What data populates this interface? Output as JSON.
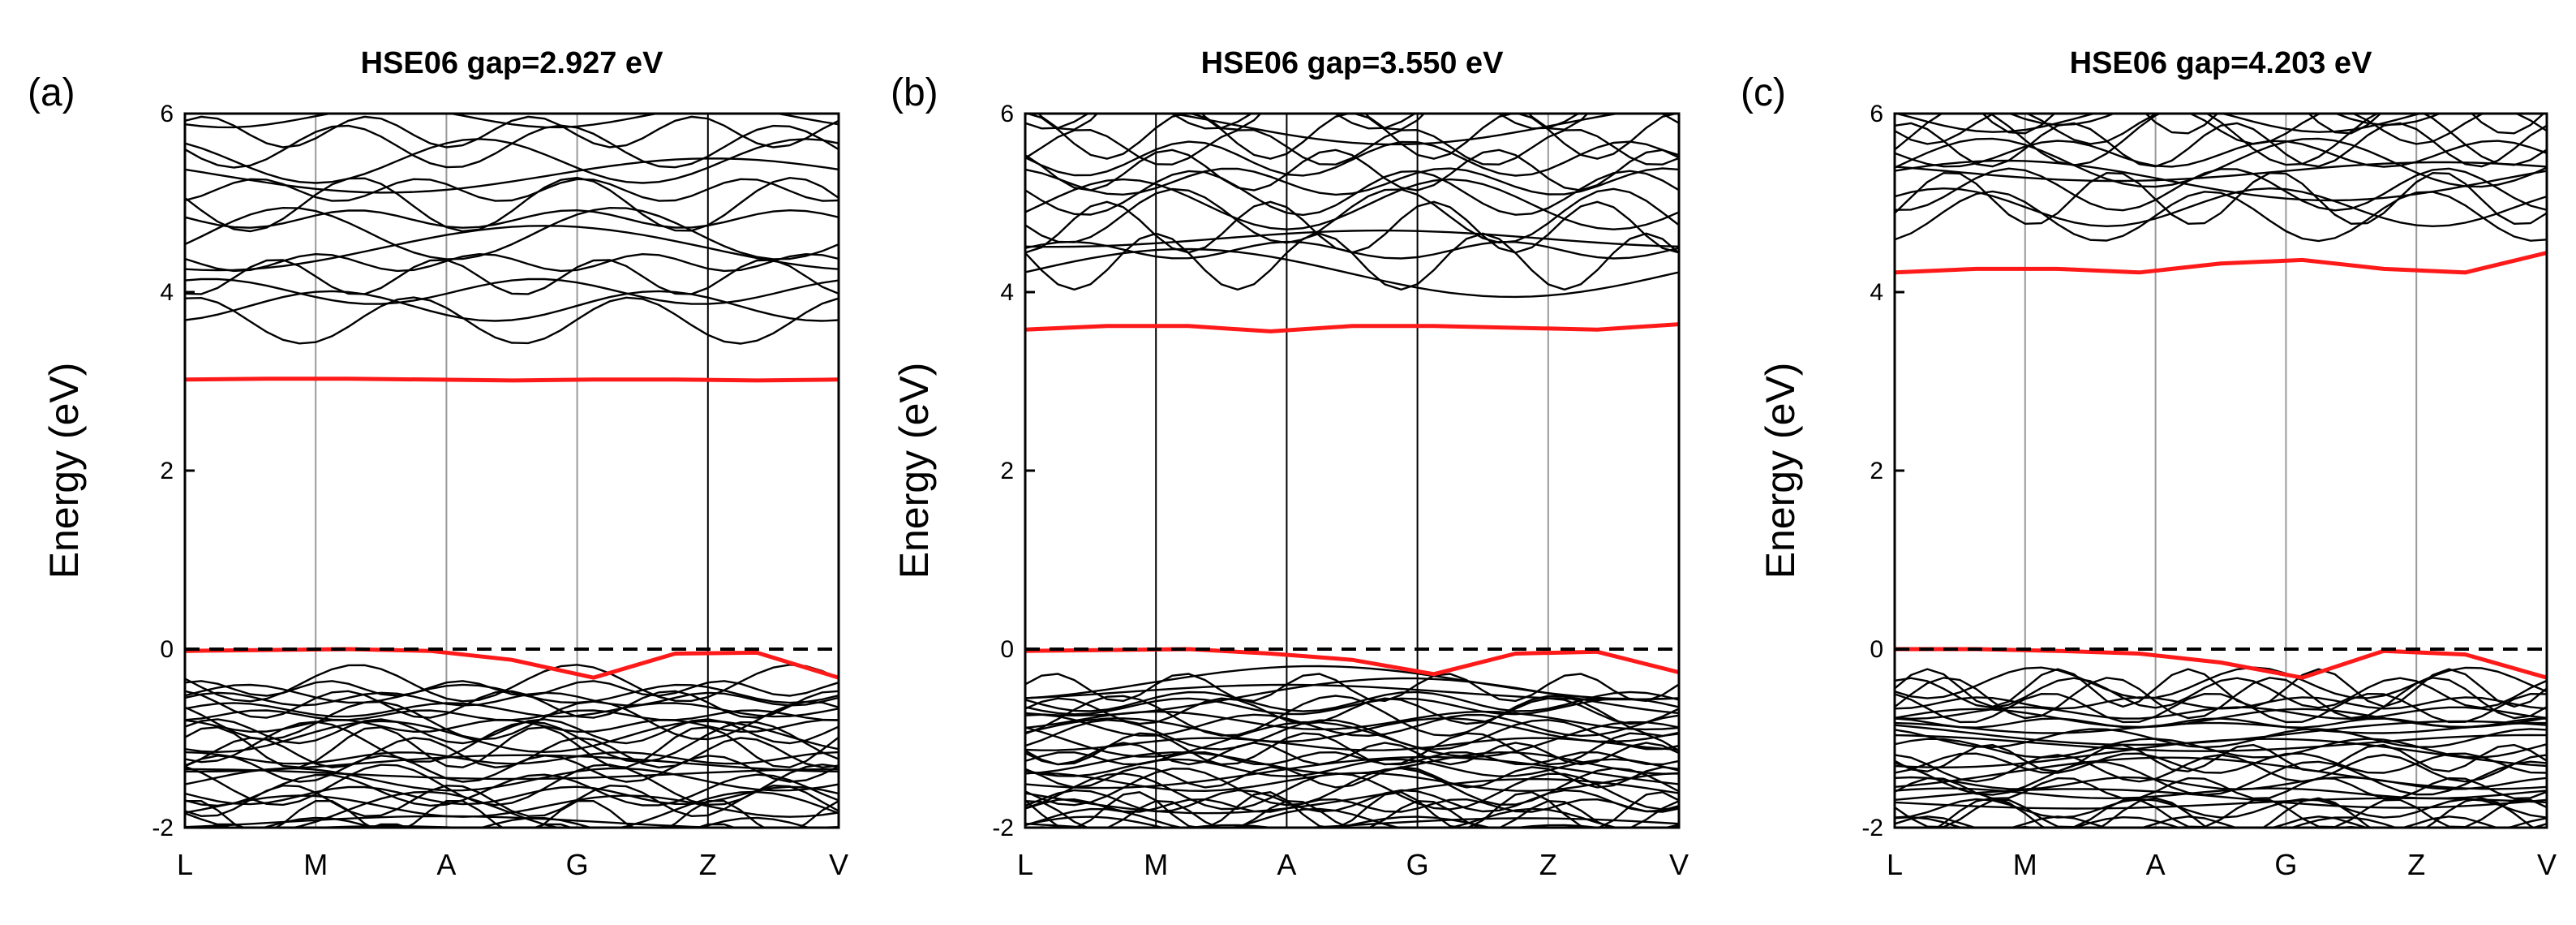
{
  "figure": {
    "description_labels": [
      "(a)",
      "(b)",
      "(c)"
    ]
  },
  "chart_data": [
    {
      "type": "line",
      "panel_label": "(a)",
      "title": "HSE06 gap=2.927 eV",
      "xlabel": "",
      "ylabel": "Energy (eV)",
      "ylim": [
        -2,
        6
      ],
      "yticks": [
        -2,
        0,
        2,
        4,
        6
      ],
      "kpoints": [
        "L",
        "M",
        "A",
        "G",
        "Z",
        "V"
      ],
      "fermi_level": 0,
      "highlight_color": "#ff1a1a",
      "vbm_curve": [
        -0.02,
        -0.01,
        0.0,
        -0.02,
        -0.12,
        -0.32,
        -0.05,
        -0.04,
        -0.32
      ],
      "cbm_curve": [
        3.02,
        3.03,
        3.03,
        3.02,
        3.01,
        3.02,
        3.02,
        3.01,
        3.02
      ],
      "conduction_band_min": 3.0,
      "conduction_band_max": 6.0,
      "conduction_band_count": 16,
      "valence_band_count": 30,
      "dark_vlines": [
        "Z"
      ]
    },
    {
      "type": "line",
      "panel_label": "(b)",
      "title": "HSE06 gap=3.550 eV",
      "xlabel": "",
      "ylabel": "Energy (eV)",
      "ylim": [
        -2,
        6
      ],
      "yticks": [
        -2,
        0,
        2,
        4,
        6
      ],
      "kpoints": [
        "L",
        "M",
        "A",
        "G",
        "Z",
        "V"
      ],
      "fermi_level": 0,
      "highlight_color": "#ff1a1a",
      "vbm_curve": [
        -0.02,
        -0.01,
        0.0,
        -0.05,
        -0.12,
        -0.28,
        -0.05,
        -0.03,
        -0.26
      ],
      "cbm_curve": [
        3.58,
        3.62,
        3.62,
        3.56,
        3.62,
        3.62,
        3.6,
        3.58,
        3.64
      ],
      "conduction_band_min": 3.55,
      "conduction_band_max": 6.0,
      "conduction_band_count": 16,
      "valence_band_count": 34,
      "dark_vlines": [
        "M",
        "A",
        "G"
      ]
    },
    {
      "type": "line",
      "panel_label": "(c)",
      "title": "HSE06 gap=4.203 eV",
      "xlabel": "",
      "ylabel": "Energy (eV)",
      "ylim": [
        -2,
        6
      ],
      "yticks": [
        -2,
        0,
        2,
        4,
        6
      ],
      "kpoints": [
        "L",
        "M",
        "A",
        "G",
        "Z",
        "V"
      ],
      "fermi_level": 0,
      "highlight_color": "#ff1a1a",
      "vbm_curve": [
        0.0,
        0.0,
        -0.02,
        -0.05,
        -0.15,
        -0.32,
        -0.02,
        -0.06,
        -0.32
      ],
      "cbm_curve": [
        4.22,
        4.26,
        4.26,
        4.22,
        4.32,
        4.36,
        4.26,
        4.22,
        4.44
      ],
      "conduction_band_min": 4.2,
      "conduction_band_max": 6.0,
      "conduction_band_count": 14,
      "valence_band_count": 32,
      "dark_vlines": []
    }
  ]
}
